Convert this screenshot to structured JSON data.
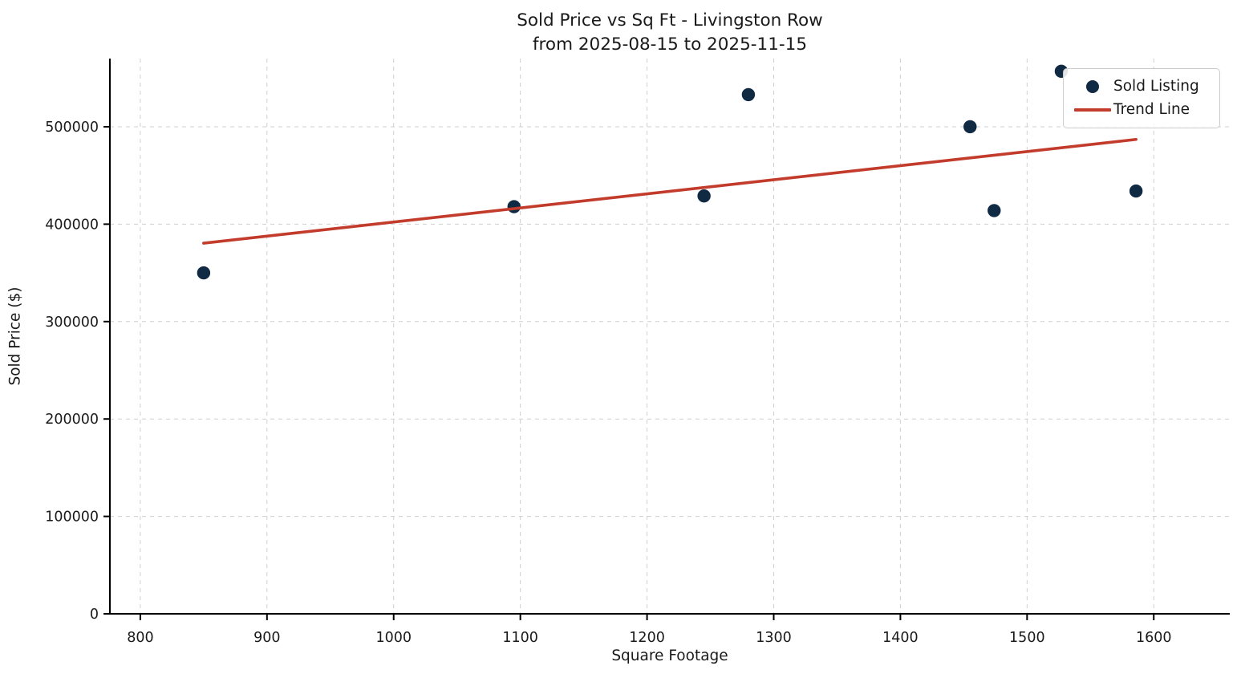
{
  "figure": {
    "background": "#ffffff",
    "text_color": "#1a1a1a",
    "grid_color": "#cfcfcf",
    "spine_color": "#000000"
  },
  "chart_data": {
    "type": "scatter",
    "title": "Sold Price vs Sq Ft - Livingston Row",
    "subtitle": "from 2025-08-15 to 2025-11-15",
    "xlabel": "Square Footage",
    "ylabel": "Sold Price ($)",
    "xlim": [
      776,
      1660
    ],
    "ylim": [
      0,
      570000
    ],
    "x_ticks": [
      "800",
      "900",
      "1000",
      "1100",
      "1200",
      "1300",
      "1400",
      "1500",
      "1600"
    ],
    "x_tick_values": [
      800,
      900,
      1000,
      1100,
      1200,
      1300,
      1400,
      1500,
      1600
    ],
    "y_ticks": [
      "0",
      "100000",
      "200000",
      "300000",
      "400000",
      "500000"
    ],
    "y_tick_values": [
      0,
      100000,
      200000,
      300000,
      400000,
      500000
    ],
    "grid": true,
    "legend_position": "upper right",
    "series": [
      {
        "name": "Sold Listing",
        "kind": "scatter",
        "color": "#102A43",
        "marker": "dot",
        "points": [
          {
            "sqft": 850,
            "price": 350000
          },
          {
            "sqft": 1095,
            "price": 418000
          },
          {
            "sqft": 1245,
            "price": 429000
          },
          {
            "sqft": 1280,
            "price": 533000
          },
          {
            "sqft": 1455,
            "price": 500000
          },
          {
            "sqft": 1474,
            "price": 414000
          },
          {
            "sqft": 1527,
            "price": 557000
          },
          {
            "sqft": 1586,
            "price": 434000
          }
        ]
      },
      {
        "name": "Trend Line",
        "kind": "line",
        "color": "#C23B2B",
        "points": [
          {
            "sqft": 850,
            "price": 380500
          },
          {
            "sqft": 1586,
            "price": 487000
          }
        ]
      }
    ],
    "legend": [
      {
        "label": "Sold Listing",
        "marker": "dot",
        "color": "#102A43"
      },
      {
        "label": "Trend Line",
        "marker": "line",
        "color": "#C23B2B"
      }
    ]
  }
}
